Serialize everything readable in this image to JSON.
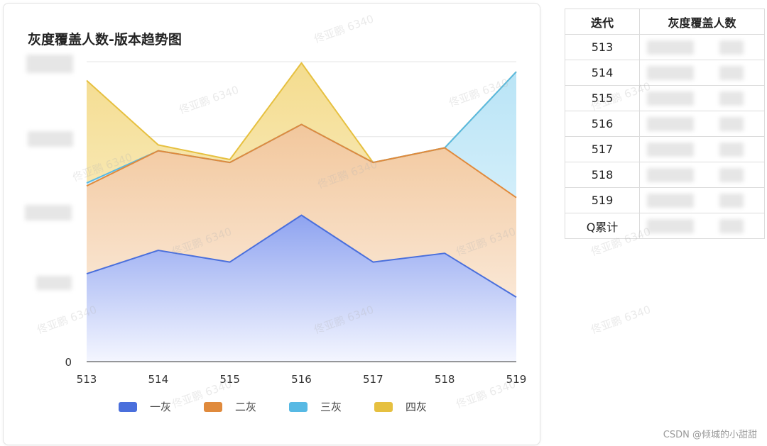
{
  "title": "灰度覆盖人数-版本趋势图",
  "colors": {
    "series1": "#4a6fdc",
    "series2": "#e08a3c",
    "series3": "#57b9e4",
    "series4": "#e6c040"
  },
  "chart_data": {
    "type": "area",
    "title": "灰度覆盖人数-版本趋势图",
    "categories": [
      "513",
      "514",
      "515",
      "516",
      "517",
      "518",
      "519"
    ],
    "y_tick_visible": "0",
    "ylim": [
      0,
      1
    ],
    "grid": true,
    "legend": "bottom",
    "series": [
      {
        "name": "一灰",
        "values": [
          0.3,
          0.38,
          0.34,
          0.5,
          0.34,
          0.37,
          0.22
        ]
      },
      {
        "name": "二灰",
        "values": [
          0.6,
          0.72,
          0.68,
          0.81,
          0.68,
          0.73,
          0.56
        ]
      },
      {
        "name": "三灰",
        "values": [
          0.61,
          0.72,
          0.68,
          0.81,
          0.68,
          0.73,
          0.99
        ]
      },
      {
        "name": "四灰",
        "values": [
          0.96,
          0.74,
          0.69,
          1.02,
          0.68,
          0.73,
          0.99
        ]
      }
    ]
  },
  "table": {
    "headers": [
      "迭代",
      "灰度覆盖人数"
    ],
    "rows": [
      "513",
      "514",
      "515",
      "516",
      "517",
      "518",
      "519",
      "Q累计"
    ]
  },
  "watermark": "佟亚鹏 6340",
  "footer": "CSDN @倾城的小甜甜"
}
